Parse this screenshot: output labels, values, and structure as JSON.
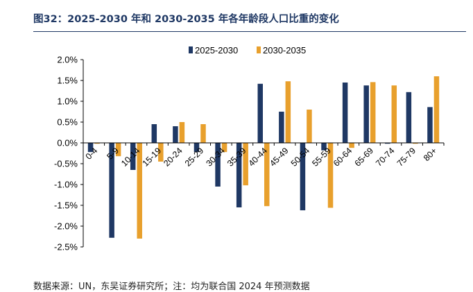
{
  "title": "图32：2025-2030 年和 2030-2035 年各年龄段人口比重的变化",
  "source": "数据来源：UN，东吴证券研究所；注：均为联合国 2024 年预测数据",
  "colors": {
    "series_1": "#1f3864",
    "series_2": "#e8a02d",
    "axis": "#000000",
    "title": "#1f3864"
  },
  "chart_data": {
    "type": "bar",
    "title": "",
    "xlabel": "",
    "ylabel": "",
    "ylim": [
      -2.5,
      2.0
    ],
    "yticks": [
      2.0,
      1.5,
      1.0,
      0.5,
      0.0,
      -0.5,
      -1.0,
      -1.5,
      -2.0,
      -2.5
    ],
    "ytick_labels": [
      "2.0%",
      "1.5%",
      "1.0%",
      "0.5%",
      "0.0%",
      "-0.5%",
      "-1.0%",
      "-1.5%",
      "-2.0%",
      "-2.5%"
    ],
    "grid": false,
    "legend": "top-center",
    "categories": [
      "0-4",
      "5-9",
      "10-14",
      "15-19",
      "20-24",
      "25-29",
      "30-34",
      "35-39",
      "40-44",
      "45-49",
      "50-54",
      "55-59",
      "60-64",
      "65-69",
      "70-74",
      "75-79",
      "80+"
    ],
    "series": [
      {
        "name": "2025-2030",
        "values": [
          -0.22,
          -2.28,
          -0.65,
          0.45,
          0.4,
          -0.22,
          -1.05,
          -1.55,
          1.42,
          0.75,
          -1.62,
          -0.18,
          1.45,
          1.38,
          -0.02,
          1.22,
          0.86
        ]
      },
      {
        "name": "2030-2035",
        "values": [
          -0.02,
          -0.32,
          -2.3,
          -0.45,
          0.5,
          0.45,
          -0.22,
          -1.02,
          -1.52,
          1.48,
          0.8,
          -1.56,
          -0.12,
          1.46,
          1.38,
          -0.02,
          1.6
        ]
      }
    ]
  }
}
